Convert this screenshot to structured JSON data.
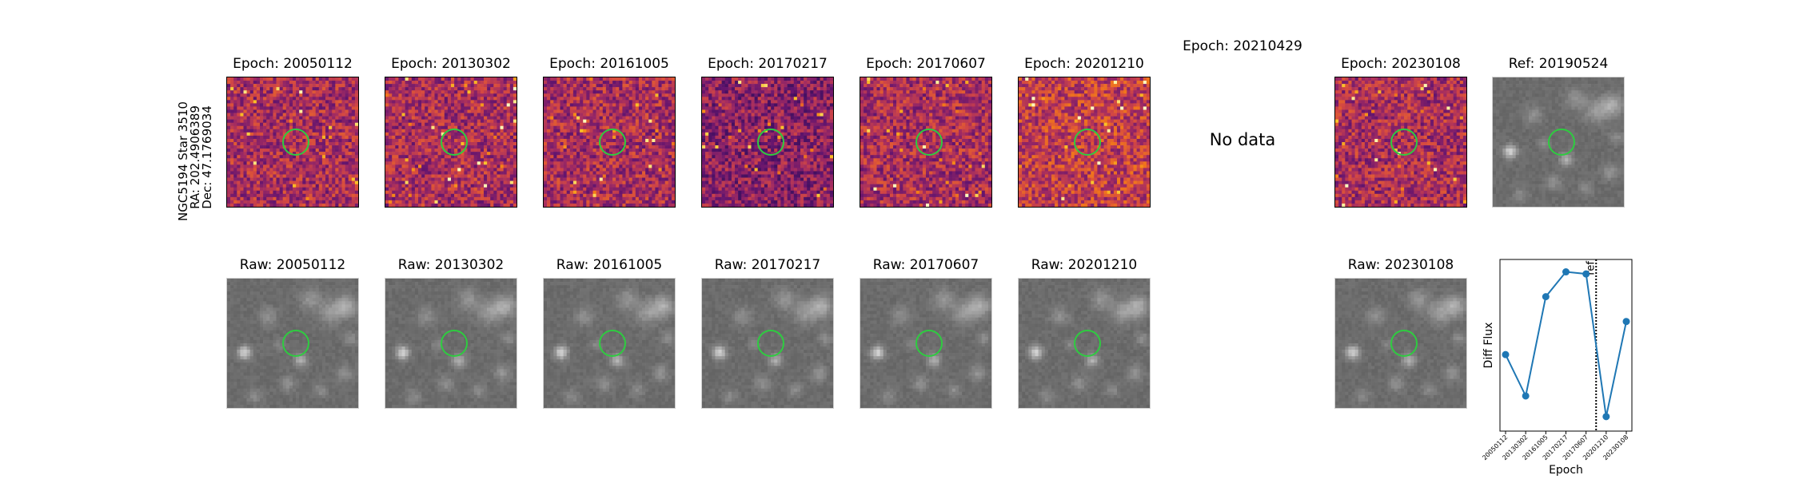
{
  "star_label": [
    "NGC5194 Star 3510",
    "RA: 202.4906389",
    "Dec: 47.1769034"
  ],
  "diff_row": [
    {
      "title": "Epoch: 20050112",
      "has_data": true,
      "seed": 11
    },
    {
      "title": "Epoch: 20130302",
      "has_data": true,
      "seed": 23
    },
    {
      "title": "Epoch: 20161005",
      "has_data": true,
      "seed": 37
    },
    {
      "title": "Epoch: 20170217",
      "has_data": true,
      "seed": 41
    },
    {
      "title": "Epoch: 20170607",
      "has_data": true,
      "seed": 53
    },
    {
      "title": "Epoch: 20201210",
      "has_data": true,
      "seed": 67
    },
    {
      "title": "Epoch: 20210429",
      "has_data": false,
      "nodata_text": "No data"
    },
    {
      "title": "Epoch: 20230108",
      "has_data": true,
      "seed": 79
    }
  ],
  "ref_panel": {
    "title": "Ref: 20190524"
  },
  "raw_row": [
    {
      "title": "Raw: 20050112"
    },
    {
      "title": "Raw: 20130302"
    },
    {
      "title": "Raw: 20161005"
    },
    {
      "title": "Raw: 20170217"
    },
    {
      "title": "Raw: 20170607"
    },
    {
      "title": "Raw: 20201210"
    },
    {
      "title": "Raw: 20230108"
    }
  ],
  "chart_data": {
    "type": "line",
    "xlabel": "Epoch",
    "ylabel": "Diff Flux",
    "x": [
      "20050112",
      "20130302",
      "20161005",
      "20170217",
      "20170607",
      "20201210",
      "20230108"
    ],
    "y": [
      0.42,
      0.22,
      0.7,
      0.82,
      0.81,
      0.12,
      0.58
    ],
    "ref_line": {
      "after_index": 4,
      "label": "ref"
    },
    "color": "#1f77b4"
  },
  "colors": {
    "circle": "#2ecc40",
    "line": "#1f77b4"
  }
}
